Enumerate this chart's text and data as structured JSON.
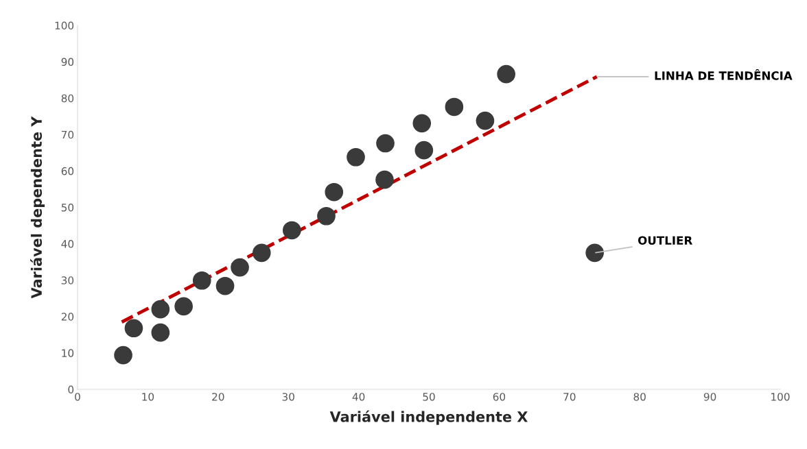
{
  "chart_data": {
    "type": "scatter",
    "xlabel": "Variável independente X",
    "ylabel": "Variável dependente Y",
    "xlim": [
      0,
      100
    ],
    "xticks": [
      0,
      10,
      20,
      30,
      40,
      50,
      60,
      70,
      80,
      90,
      100
    ],
    "ylim": [
      0,
      100
    ],
    "yticks": [
      0,
      10,
      20,
      30,
      40,
      50,
      60,
      70,
      80,
      90,
      100
    ],
    "grid": false,
    "series": [
      {
        "marker": "circle",
        "color": "#3a3a3a",
        "x": [
          6.5,
          8.0,
          11.8,
          11.8,
          15.1,
          17.7,
          21.0,
          23.1,
          26.2,
          30.5,
          35.4,
          36.5,
          39.6,
          43.7,
          43.8,
          49.0,
          49.3,
          53.6,
          58.0,
          61.0,
          73.6
        ],
        "values": [
          9.4,
          16.8,
          22.0,
          15.6,
          22.8,
          29.9,
          28.4,
          33.5,
          37.5,
          43.7,
          47.6,
          54.2,
          63.8,
          57.6,
          67.6,
          73.1,
          65.7,
          77.6,
          73.8,
          86.6,
          37.5
        ]
      },
      {
        "type": "line",
        "color": "#c00000",
        "line_style": "dashed",
        "x": [
          6.3,
          73.9
        ],
        "values": [
          18.5,
          85.9
        ]
      }
    ],
    "annotations": [
      {
        "text": "LINHA DE TENDÊNCIA",
        "x": 73.9,
        "y": 85.9
      },
      {
        "text": "OUTLIER",
        "x": 73.6,
        "y": 37.5
      }
    ]
  }
}
